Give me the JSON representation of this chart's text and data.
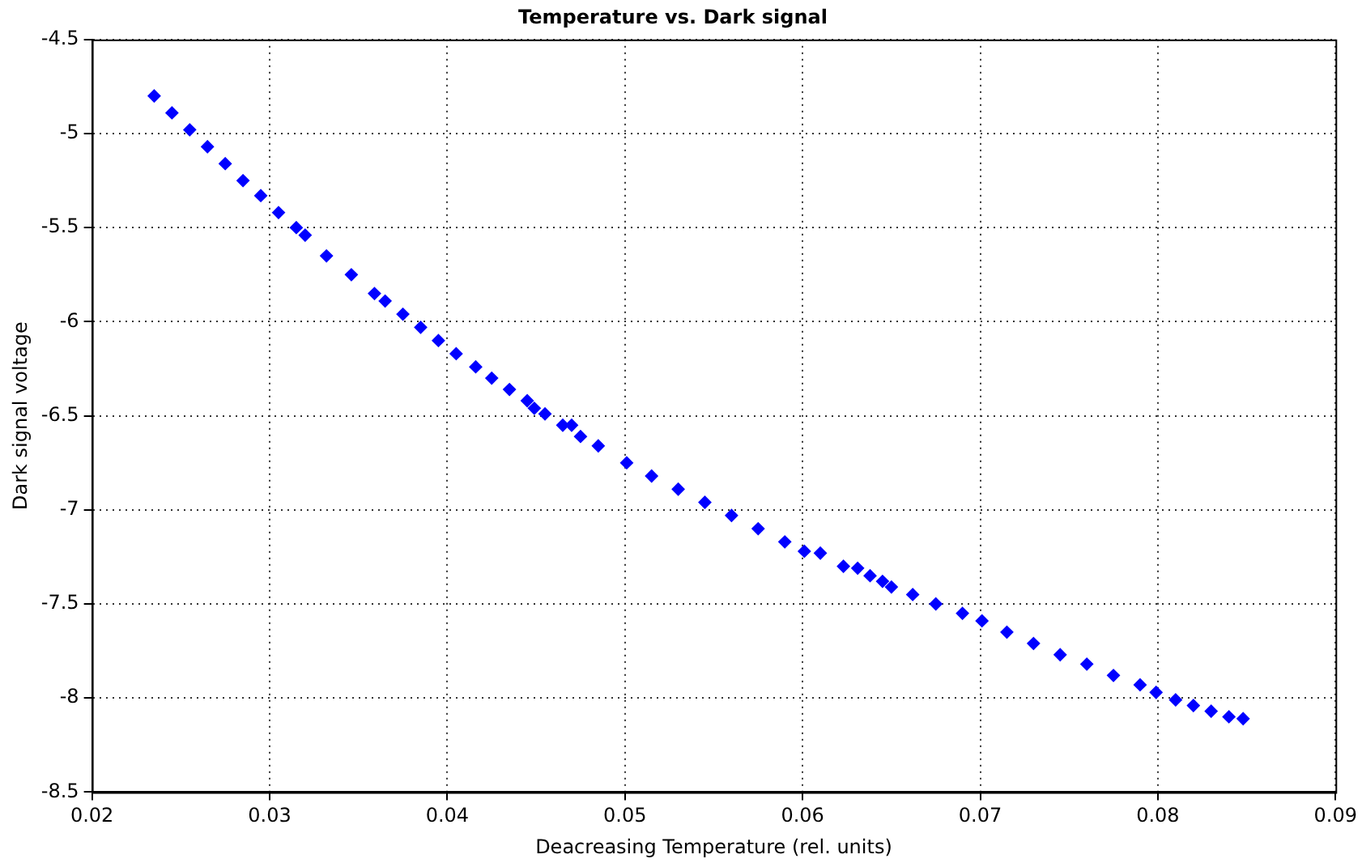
{
  "chart_data": {
    "type": "scatter",
    "title": "Temperature vs. Dark signal",
    "xlabel": "Deacreasing Temperature (rel. units)",
    "ylabel": "Dark signal voltage",
    "xlim": [
      0.02,
      0.09
    ],
    "xticks": [
      0.02,
      0.03,
      0.04,
      0.05,
      0.06,
      0.07,
      0.08,
      0.09
    ],
    "ylim": [
      -8.5,
      -4.5
    ],
    "yticks": [
      -8.5,
      -8,
      -7.5,
      -7,
      -6.5,
      -6,
      -5.5,
      -5,
      -4.5
    ],
    "grid": true,
    "marker": "diamond",
    "legend": false,
    "series": [
      {
        "color": "#0000ff",
        "x": [
          0.0235,
          0.0245,
          0.0255,
          0.0265,
          0.0275,
          0.0285,
          0.0295,
          0.0305,
          0.0315,
          0.032,
          0.0332,
          0.0346,
          0.0359,
          0.0365,
          0.0375,
          0.0385,
          0.0395,
          0.0405,
          0.0416,
          0.0425,
          0.0435,
          0.0445,
          0.0449,
          0.0455,
          0.0465,
          0.047,
          0.0475,
          0.0485,
          0.0501,
          0.0515,
          0.053,
          0.0545,
          0.056,
          0.0575,
          0.059,
          0.0601,
          0.061,
          0.0623,
          0.0631,
          0.0638,
          0.0645,
          0.065,
          0.0662,
          0.0675,
          0.069,
          0.0701,
          0.0715,
          0.073,
          0.0745,
          0.076,
          0.0775,
          0.079,
          0.0799,
          0.081,
          0.082,
          0.083,
          0.084,
          0.0848
        ],
        "values": [
          -4.8,
          -4.89,
          -4.98,
          -5.07,
          -5.16,
          -5.25,
          -5.33,
          -5.42,
          -5.5,
          -5.54,
          -5.65,
          -5.75,
          -5.85,
          -5.89,
          -5.96,
          -6.03,
          -6.1,
          -6.17,
          -6.24,
          -6.3,
          -6.36,
          -6.42,
          -6.46,
          -6.49,
          -6.55,
          -6.55,
          -6.61,
          -6.66,
          -6.75,
          -6.82,
          -6.89,
          -6.96,
          -7.03,
          -7.1,
          -7.17,
          -7.22,
          -7.23,
          -7.3,
          -7.31,
          -7.35,
          -7.38,
          -7.41,
          -7.45,
          -7.5,
          -7.55,
          -7.59,
          -7.65,
          -7.71,
          -7.77,
          -7.82,
          -7.88,
          -7.93,
          -7.97,
          -8.01,
          -8.04,
          -8.07,
          -8.1,
          -8.11
        ]
      }
    ]
  }
}
